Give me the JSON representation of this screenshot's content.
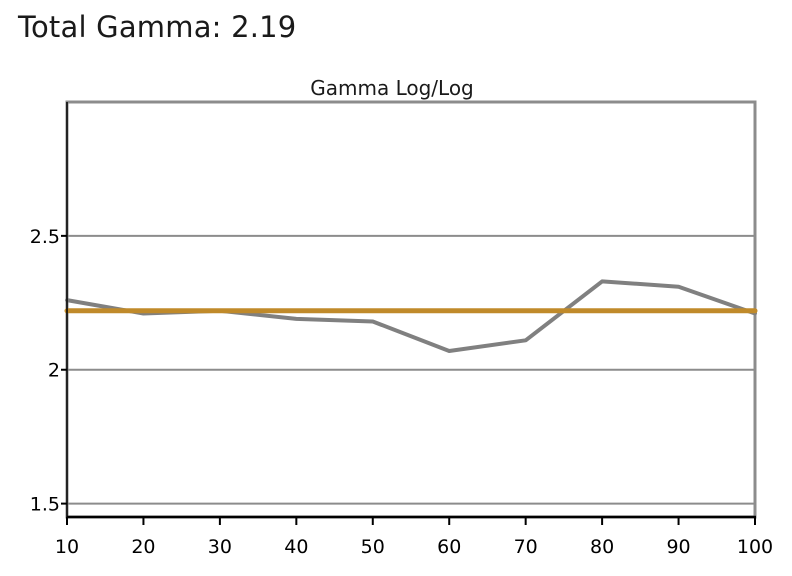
{
  "headline": {
    "label": "Total Gamma:",
    "value": "2.19"
  },
  "chart_data": {
    "type": "line",
    "title": "Gamma Log/Log",
    "xlabel": "",
    "ylabel": "",
    "x": [
      10,
      20,
      30,
      40,
      50,
      60,
      70,
      80,
      90,
      100
    ],
    "x_ticks": [
      "10",
      "20",
      "30",
      "40",
      "50",
      "60",
      "70",
      "80",
      "90",
      "100"
    ],
    "xlim": [
      10,
      100
    ],
    "ylim": [
      1.45,
      3.0
    ],
    "y_ticks": [
      1.5,
      2.0,
      2.5
    ],
    "y_tick_labels": [
      "1.5",
      "2",
      "2.5"
    ],
    "grid": "horizontal",
    "series": [
      {
        "values": [
          2.26,
          2.21,
          2.22,
          2.19,
          2.18,
          2.07,
          2.11,
          2.33,
          2.31,
          2.21
        ],
        "color": "#808080"
      },
      {
        "values": [
          2.22,
          2.22,
          2.22,
          2.22,
          2.22,
          2.22,
          2.22,
          2.22,
          2.22,
          2.22
        ],
        "color": "#c08a2a"
      }
    ]
  }
}
